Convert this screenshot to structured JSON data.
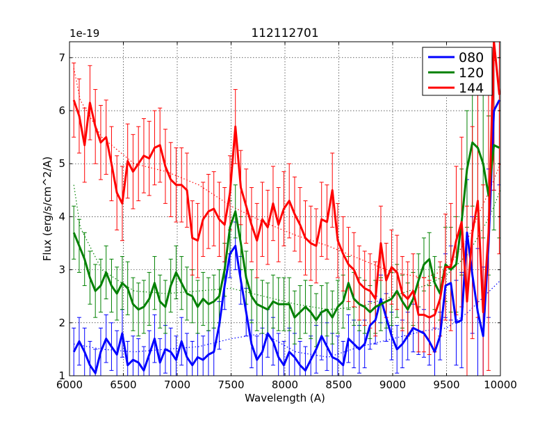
{
  "chart_data": {
    "type": "line",
    "title": "112112701",
    "xlabel": "Wavelength (A)",
    "ylabel": "Flux (erg/s/cm^2/A)",
    "y_exponent_label": "1e-19",
    "xlim": [
      6000,
      10000
    ],
    "ylim": [
      1.0,
      7.3
    ],
    "x_ticks": [
      6000,
      6500,
      7000,
      7500,
      8000,
      8500,
      9000,
      9500,
      10000
    ],
    "x_tick_labels": [
      "6000",
      "6500",
      "7000",
      "7500",
      "8000",
      "8500",
      "9000",
      "9500",
      "10000"
    ],
    "y_ticks": [
      1,
      2,
      3,
      4,
      5,
      6,
      7
    ],
    "y_tick_labels": [
      "1",
      "2",
      "3",
      "4",
      "5",
      "6",
      "7"
    ],
    "grid": true,
    "legend_position": "top-right",
    "series": [
      {
        "name": "080",
        "color": "#0000ff",
        "x": [
          6040,
          6090,
          6140,
          6190,
          6240,
          6290,
          6340,
          6390,
          6440,
          6490,
          6540,
          6590,
          6640,
          6690,
          6740,
          6790,
          6840,
          6890,
          6940,
          6990,
          7040,
          7090,
          7140,
          7190,
          7240,
          7290,
          7340,
          7390,
          7440,
          7490,
          7540,
          7590,
          7640,
          7690,
          7740,
          7790,
          7840,
          7890,
          7940,
          7990,
          8040,
          8090,
          8140,
          8190,
          8240,
          8290,
          8340,
          8390,
          8440,
          8490,
          8540,
          8590,
          8640,
          8690,
          8740,
          8790,
          8840,
          8890,
          8940,
          8990,
          9040,
          9090,
          9140,
          9190,
          9240,
          9290,
          9340,
          9390,
          9440,
          9490,
          9540,
          9590,
          9640,
          9690,
          9740,
          9790,
          9840,
          9890,
          9940,
          9990
        ],
        "values": [
          1.45,
          1.65,
          1.45,
          1.2,
          1.05,
          1.45,
          1.7,
          1.55,
          1.4,
          1.8,
          1.2,
          1.3,
          1.25,
          1.1,
          1.4,
          1.7,
          1.25,
          1.5,
          1.45,
          1.3,
          1.65,
          1.35,
          1.2,
          1.35,
          1.3,
          1.4,
          1.45,
          1.95,
          2.7,
          3.3,
          3.45,
          2.8,
          2.2,
          1.6,
          1.3,
          1.45,
          1.8,
          1.65,
          1.35,
          1.2,
          1.45,
          1.35,
          1.2,
          1.1,
          1.3,
          1.5,
          1.75,
          1.55,
          1.35,
          1.3,
          1.2,
          1.7,
          1.6,
          1.5,
          1.6,
          1.95,
          2.05,
          2.45,
          2.1,
          1.75,
          1.5,
          1.6,
          1.75,
          1.9,
          1.85,
          1.8,
          1.65,
          1.45,
          1.75,
          2.7,
          2.75,
          2.0,
          2.05,
          3.7,
          2.9,
          2.2,
          1.75,
          3.5,
          6.0,
          6.2
        ],
        "errors": [
          0.45,
          0.45,
          0.45,
          0.45,
          0.45,
          0.45,
          0.45,
          0.45,
          0.45,
          0.45,
          0.45,
          0.45,
          0.45,
          0.45,
          0.45,
          0.45,
          0.45,
          0.45,
          0.45,
          0.45,
          0.45,
          0.45,
          0.45,
          0.45,
          0.45,
          0.45,
          0.45,
          0.45,
          0.45,
          0.45,
          0.45,
          0.45,
          0.45,
          0.45,
          0.45,
          0.45,
          0.45,
          0.45,
          0.45,
          0.45,
          0.45,
          0.45,
          0.45,
          0.45,
          0.45,
          0.45,
          0.45,
          0.45,
          0.45,
          0.45,
          0.45,
          0.45,
          0.45,
          0.45,
          0.45,
          0.45,
          0.45,
          0.45,
          0.45,
          0.45,
          0.45,
          0.45,
          0.45,
          0.45,
          0.45,
          0.45,
          0.45,
          0.45,
          0.45,
          0.6,
          0.7,
          0.8,
          0.9,
          1.0,
          1.1,
          1.2,
          1.3,
          1.4,
          1.5,
          1.6
        ]
      },
      {
        "name": "120",
        "color": "#008000",
        "x": [
          6040,
          6090,
          6140,
          6190,
          6240,
          6290,
          6340,
          6390,
          6440,
          6490,
          6540,
          6590,
          6640,
          6690,
          6740,
          6790,
          6840,
          6890,
          6940,
          6990,
          7040,
          7090,
          7140,
          7190,
          7240,
          7290,
          7340,
          7390,
          7440,
          7490,
          7540,
          7590,
          7640,
          7690,
          7740,
          7790,
          7840,
          7890,
          7940,
          7990,
          8040,
          8090,
          8140,
          8190,
          8240,
          8290,
          8340,
          8390,
          8440,
          8490,
          8540,
          8590,
          8640,
          8690,
          8740,
          8790,
          8840,
          8890,
          8940,
          8990,
          9040,
          9090,
          9140,
          9190,
          9240,
          9290,
          9340,
          9390,
          9440,
          9490,
          9540,
          9590,
          9640,
          9690,
          9740,
          9790,
          9840,
          9890,
          9940,
          9990
        ],
        "values": [
          3.7,
          3.45,
          3.2,
          2.85,
          2.6,
          2.7,
          2.95,
          2.7,
          2.55,
          2.75,
          2.65,
          2.35,
          2.25,
          2.3,
          2.45,
          2.75,
          2.4,
          2.3,
          2.7,
          2.95,
          2.75,
          2.55,
          2.5,
          2.3,
          2.45,
          2.35,
          2.4,
          2.5,
          3.0,
          3.8,
          4.1,
          3.5,
          2.85,
          2.5,
          2.35,
          2.3,
          2.25,
          2.4,
          2.35,
          2.35,
          2.35,
          2.1,
          2.2,
          2.3,
          2.2,
          2.05,
          2.2,
          2.25,
          2.1,
          2.3,
          2.4,
          2.75,
          2.45,
          2.35,
          2.3,
          2.2,
          2.3,
          2.35,
          2.4,
          2.45,
          2.6,
          2.4,
          2.25,
          2.45,
          2.8,
          3.1,
          3.2,
          2.75,
          2.55,
          3.1,
          3.0,
          3.1,
          3.9,
          4.9,
          5.4,
          5.3,
          5.0,
          4.4,
          5.35,
          5.3
        ],
        "errors": [
          0.5,
          0.5,
          0.5,
          0.5,
          0.5,
          0.5,
          0.5,
          0.5,
          0.5,
          0.5,
          0.5,
          0.5,
          0.5,
          0.5,
          0.5,
          0.5,
          0.5,
          0.5,
          0.5,
          0.5,
          0.5,
          0.5,
          0.5,
          0.5,
          0.5,
          0.5,
          0.5,
          0.5,
          0.5,
          0.5,
          0.5,
          0.5,
          0.5,
          0.5,
          0.5,
          0.5,
          0.5,
          0.5,
          0.5,
          0.5,
          0.5,
          0.5,
          0.5,
          0.5,
          0.5,
          0.5,
          0.5,
          0.5,
          0.5,
          0.5,
          0.5,
          0.5,
          0.5,
          0.5,
          0.5,
          0.5,
          0.5,
          0.5,
          0.5,
          0.5,
          0.5,
          0.5,
          0.5,
          0.5,
          0.5,
          0.5,
          0.5,
          0.5,
          0.5,
          0.7,
          0.8,
          0.9,
          1.0,
          1.1,
          1.2,
          1.3,
          1.4,
          1.5,
          1.6,
          1.7
        ]
      },
      {
        "name": "144",
        "color": "#ff0000",
        "x": [
          6040,
          6090,
          6140,
          6190,
          6240,
          6290,
          6340,
          6390,
          6440,
          6490,
          6540,
          6590,
          6640,
          6690,
          6740,
          6790,
          6840,
          6890,
          6940,
          6990,
          7040,
          7090,
          7140,
          7190,
          7240,
          7290,
          7340,
          7390,
          7440,
          7490,
          7540,
          7590,
          7640,
          7690,
          7740,
          7790,
          7840,
          7890,
          7940,
          7990,
          8040,
          8090,
          8140,
          8190,
          8240,
          8290,
          8340,
          8390,
          8440,
          8490,
          8540,
          8590,
          8640,
          8690,
          8740,
          8790,
          8840,
          8890,
          8940,
          8990,
          9040,
          9090,
          9140,
          9190,
          9240,
          9290,
          9340,
          9390,
          9440,
          9490,
          9540,
          9590,
          9640,
          9690,
          9740,
          9790,
          9840,
          9890,
          9940,
          9990
        ],
        "values": [
          6.2,
          5.9,
          5.35,
          6.15,
          5.7,
          5.4,
          5.5,
          5.0,
          4.45,
          4.25,
          5.05,
          4.85,
          5.0,
          5.15,
          5.1,
          5.3,
          5.35,
          4.95,
          4.7,
          4.6,
          4.6,
          4.5,
          3.6,
          3.55,
          3.95,
          4.1,
          4.15,
          3.95,
          3.85,
          4.45,
          5.7,
          4.55,
          4.2,
          3.85,
          3.55,
          3.95,
          3.8,
          4.25,
          3.85,
          4.15,
          4.3,
          4.05,
          3.85,
          3.6,
          3.5,
          3.45,
          3.95,
          3.9,
          4.5,
          3.55,
          3.3,
          3.1,
          3.0,
          2.75,
          2.65,
          2.6,
          2.45,
          3.5,
          2.8,
          3.05,
          2.95,
          2.55,
          2.45,
          2.6,
          2.15,
          2.15,
          2.1,
          2.15,
          2.45,
          3.05,
          3.05,
          3.55,
          3.9,
          2.4,
          3.7,
          4.3,
          2.2,
          3.7,
          7.3,
          6.3
        ],
        "errors": [
          0.7,
          0.7,
          0.7,
          0.7,
          0.7,
          0.7,
          0.7,
          0.7,
          0.7,
          0.7,
          0.7,
          0.7,
          0.7,
          0.7,
          0.7,
          0.7,
          0.7,
          0.7,
          0.7,
          0.7,
          0.7,
          0.7,
          0.7,
          0.7,
          0.7,
          0.7,
          0.7,
          0.7,
          0.7,
          0.7,
          0.7,
          0.7,
          0.7,
          0.7,
          0.7,
          0.7,
          0.7,
          0.7,
          0.7,
          0.7,
          0.7,
          0.7,
          0.7,
          0.7,
          0.7,
          0.7,
          0.7,
          0.7,
          0.7,
          0.7,
          0.7,
          0.7,
          0.7,
          0.7,
          0.7,
          0.7,
          0.7,
          0.7,
          0.7,
          0.7,
          0.7,
          0.7,
          0.7,
          0.7,
          0.7,
          0.7,
          0.7,
          0.7,
          0.7,
          1.0,
          1.2,
          1.4,
          1.6,
          1.8,
          2.0,
          2.2,
          2.4,
          2.6,
          2.8,
          3.0
        ]
      }
    ],
    "continuum_series": [
      {
        "color": "#0000ff",
        "x": [
          6040,
          6300,
          6600,
          6900,
          7200,
          7500,
          7800,
          8100,
          8400,
          8700,
          9000,
          9300,
          9500,
          9700,
          9900,
          10000
        ],
        "values": [
          1.6,
          1.5,
          1.45,
          1.5,
          1.55,
          1.7,
          1.8,
          1.45,
          1.35,
          1.55,
          1.7,
          1.85,
          1.9,
          2.2,
          2.6,
          2.8
        ]
      },
      {
        "color": "#008000",
        "x": [
          6040,
          6100,
          6300,
          6600,
          6900,
          7200,
          7500,
          7800,
          8100,
          8400,
          8700,
          9000,
          9300,
          9500,
          9700,
          9900,
          10000
        ],
        "values": [
          4.6,
          3.8,
          3.0,
          2.6,
          2.55,
          2.6,
          2.65,
          2.5,
          2.35,
          2.25,
          2.3,
          2.5,
          2.7,
          2.9,
          3.3,
          4.0,
          4.5
        ]
      },
      {
        "color": "#ff0000",
        "x": [
          6040,
          6100,
          6300,
          6600,
          6900,
          7200,
          7500,
          7800,
          8100,
          8400,
          8700,
          9000,
          9300,
          9500,
          9700,
          9900,
          10000
        ],
        "values": [
          6.8,
          6.2,
          5.5,
          5.0,
          4.85,
          4.6,
          4.2,
          3.9,
          3.65,
          3.45,
          3.2,
          2.95,
          2.85,
          3.0,
          3.6,
          4.5,
          5.0
        ]
      }
    ]
  }
}
